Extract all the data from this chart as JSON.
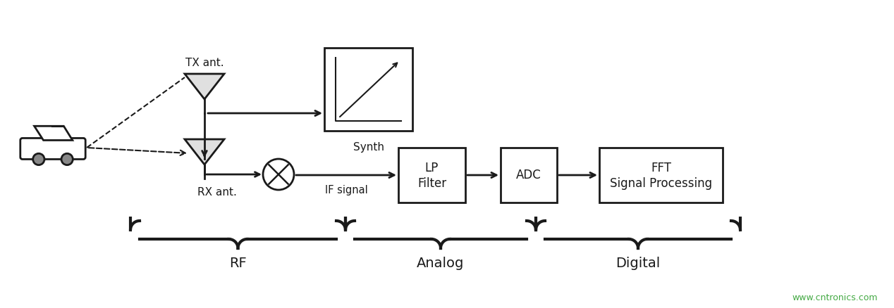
{
  "bg_color": "#ffffff",
  "line_color": "#1a1a1a",
  "watermark": "www.cntronics.com",
  "watermark_color": "#44aa44",
  "labels": {
    "tx_ant": "TX ant.",
    "rx_ant": "RX ant.",
    "synth": "Synth",
    "if_signal": "IF signal",
    "lp_line1": "LP",
    "lp_line2": "Filter",
    "adc": "ADC",
    "fft_line1": "FFT",
    "fft_line2": "Signal Processing",
    "rf": "RF",
    "analog": "Analog",
    "digital": "Digital"
  },
  "figsize": [
    12.68,
    4.38
  ],
  "dpi": 100
}
